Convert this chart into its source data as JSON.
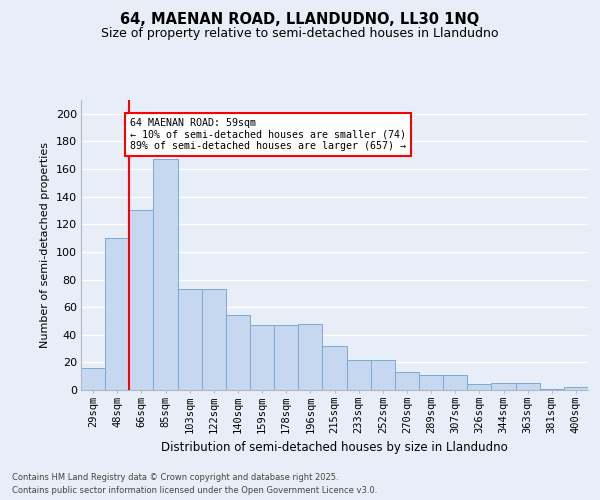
{
  "title": "64, MAENAN ROAD, LLANDUDNO, LL30 1NQ",
  "subtitle": "Size of property relative to semi-detached houses in Llandudno",
  "xlabel": "Distribution of semi-detached houses by size in Llandudno",
  "ylabel": "Number of semi-detached properties",
  "categories": [
    "29sqm",
    "48sqm",
    "66sqm",
    "85sqm",
    "103sqm",
    "122sqm",
    "140sqm",
    "159sqm",
    "178sqm",
    "196sqm",
    "215sqm",
    "233sqm",
    "252sqm",
    "270sqm",
    "289sqm",
    "307sqm",
    "326sqm",
    "344sqm",
    "363sqm",
    "381sqm",
    "400sqm"
  ],
  "values": [
    16,
    110,
    130,
    167,
    73,
    73,
    54,
    47,
    47,
    48,
    32,
    22,
    22,
    13,
    11,
    11,
    4,
    5,
    5,
    1,
    2
  ],
  "bar_color": "#c5d8f0",
  "bar_edge_color": "#7aaad4",
  "red_line_x": 1.5,
  "annotation_title": "64 MAENAN ROAD: 59sqm",
  "annotation_line1": "← 10% of semi-detached houses are smaller (74)",
  "annotation_line2": "89% of semi-detached houses are larger (657) →",
  "footer_line1": "Contains HM Land Registry data © Crown copyright and database right 2025.",
  "footer_line2": "Contains public sector information licensed under the Open Government Licence v3.0.",
  "ylim": [
    0,
    210
  ],
  "yticks": [
    0,
    20,
    40,
    60,
    80,
    100,
    120,
    140,
    160,
    180,
    200
  ],
  "background_color": "#e8eef7",
  "plot_bg_color": "#e8eef7",
  "grid_color": "#ffffff",
  "title_fontsize": 10.5,
  "subtitle_fontsize": 9
}
